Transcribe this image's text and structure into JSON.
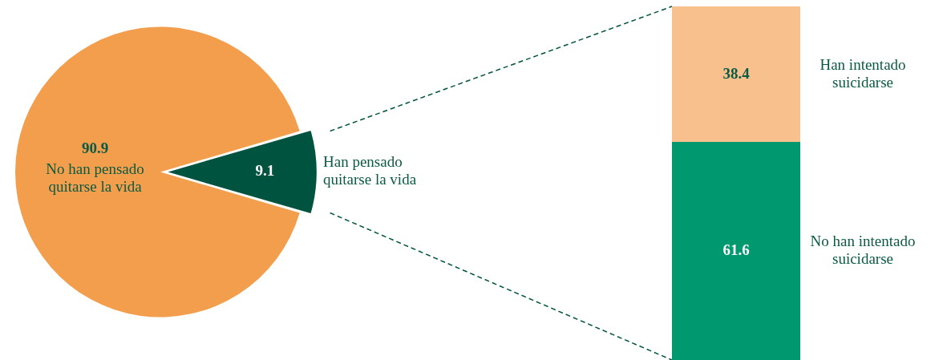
{
  "chart_data": [
    {
      "type": "pie",
      "categories": [
        "No han pensado quitarse la vida",
        "Han pensado quitarse la vida"
      ],
      "values": [
        90.9,
        9.1
      ],
      "colors": [
        "#f29e4c",
        "#00533f"
      ],
      "data_labels": true
    },
    {
      "type": "bar",
      "stacked": true,
      "categories": [
        null
      ],
      "ylim": [
        0,
        100
      ],
      "data_labels": true,
      "series": [
        {
          "name": "No han intentado suicidarse",
          "color": "#00986f",
          "values": [
            61.6
          ]
        },
        {
          "name": "Han intentado suicidarse",
          "color": "#f8c08c",
          "values": [
            38.4
          ]
        }
      ]
    }
  ]
}
